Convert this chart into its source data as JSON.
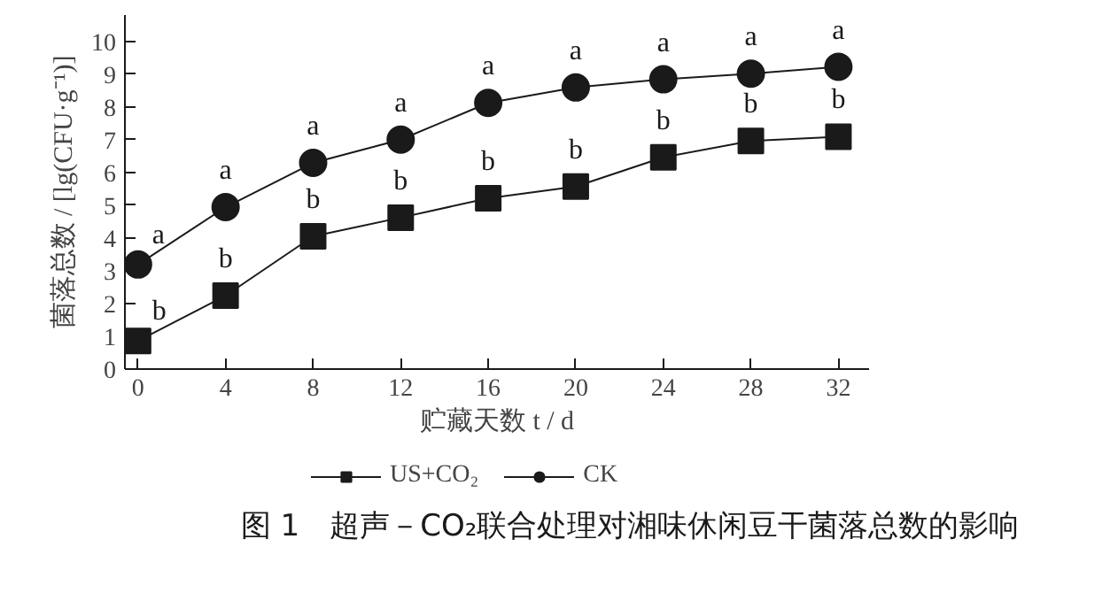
{
  "chart_data": {
    "type": "line",
    "title": "图 1　超声－CO₂联合处理对湘味休闲豆干菌落总数的影响",
    "xlabel": "贮藏天数 t / d",
    "ylabel": "菌落总数 / [lg(CFU·g⁻¹)]",
    "x": [
      0,
      4,
      8,
      12,
      16,
      20,
      24,
      28,
      32
    ],
    "series": [
      {
        "name": "US+CO₂",
        "color": "#1a1a1a",
        "marker": "square",
        "values": [
          0.86,
          2.24,
          4.05,
          4.62,
          5.21,
          5.57,
          6.46,
          6.96,
          7.09
        ]
      },
      {
        "name": "CK",
        "color": "#1a1a1a",
        "marker": "circle",
        "values": [
          3.19,
          4.94,
          6.29,
          7.0,
          8.12,
          8.59,
          8.84,
          9.01,
          9.22
        ]
      }
    ],
    "xlim": [
      -0.6,
      33.4
    ],
    "ylim": [
      0,
      10.8
    ],
    "xticks": [
      0,
      4,
      8,
      12,
      16,
      20,
      24,
      28,
      32
    ],
    "yticks": [
      0,
      1,
      2,
      3,
      4,
      5,
      6,
      7,
      8,
      9,
      10
    ],
    "grid": false,
    "legend": "bottom",
    "line_style": "solid",
    "annotations": [
      {
        "text": "b",
        "x": 0,
        "y": 0.86
      },
      {
        "text": "b",
        "x": 4,
        "y": 2.24
      },
      {
        "text": "b",
        "x": 8,
        "y": 4.05
      },
      {
        "text": "b",
        "x": 12,
        "y": 4.62
      },
      {
        "text": "b",
        "x": 16,
        "y": 5.21
      },
      {
        "text": "b",
        "x": 20,
        "y": 5.57
      },
      {
        "text": "b",
        "x": 24,
        "y": 6.46
      },
      {
        "text": "b",
        "x": 28,
        "y": 6.96
      },
      {
        "text": "b",
        "x": 32,
        "y": 7.09
      },
      {
        "text": "a",
        "x": 0,
        "y": 3.19
      },
      {
        "text": "a",
        "x": 4,
        "y": 4.94
      },
      {
        "text": "a",
        "x": 8,
        "y": 6.29
      },
      {
        "text": "a",
        "x": 12,
        "y": 7.0
      },
      {
        "text": "a",
        "x": 16,
        "y": 8.12
      },
      {
        "text": "a",
        "x": 20,
        "y": 8.59
      },
      {
        "text": "a",
        "x": 24,
        "y": 8.84
      },
      {
        "text": "a",
        "x": 28,
        "y": 9.01
      },
      {
        "text": "a",
        "x": 32,
        "y": 9.22
      }
    ]
  }
}
